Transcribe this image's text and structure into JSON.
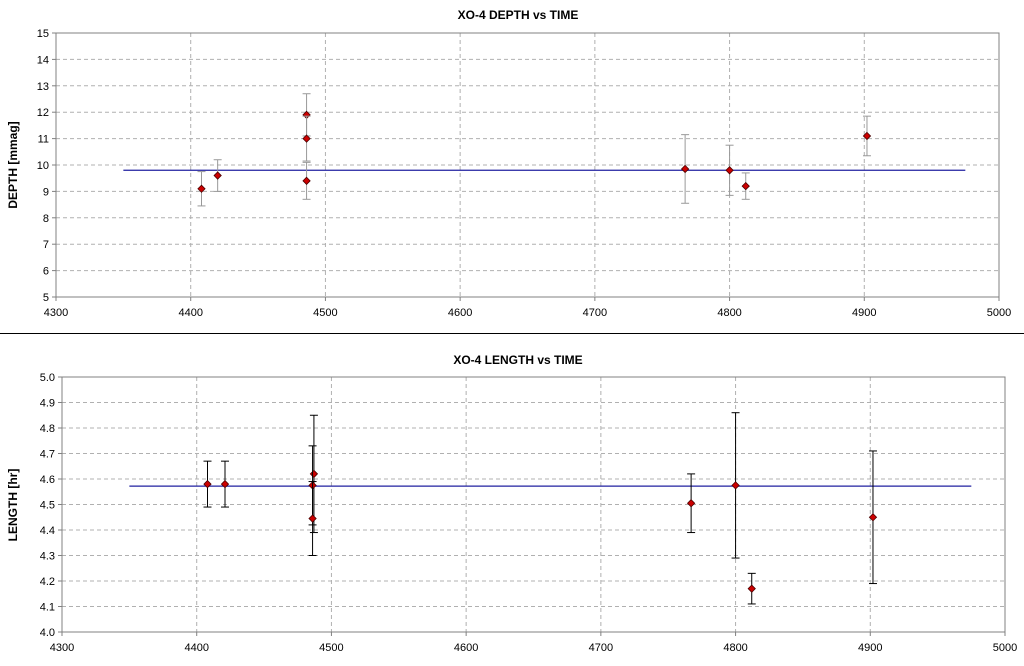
{
  "chart_data": [
    {
      "type": "scatter",
      "title": "XO-4 DEPTH vs TIME",
      "xlabel": "",
      "ylabel": "DEPTH [mmag]",
      "xlim": [
        4300,
        5000
      ],
      "ylim": [
        5,
        15
      ],
      "x_ticks": [
        "4300",
        "4400",
        "4500",
        "4600",
        "4700",
        "4800",
        "4900",
        "5000"
      ],
      "y_ticks": [
        "5",
        "6",
        "7",
        "8",
        "9",
        "10",
        "11",
        "12",
        "13",
        "14",
        "15"
      ],
      "grid": true,
      "points": [
        {
          "x": 4408,
          "y": 9.1,
          "err": 0.65
        },
        {
          "x": 4420,
          "y": 9.6,
          "err": 0.6
        },
        {
          "x": 4486,
          "y": 11.9,
          "err": 0.8
        },
        {
          "x": 4486,
          "y": 11.0,
          "err": 0.85
        },
        {
          "x": 4486,
          "y": 9.4,
          "err": 0.7
        },
        {
          "x": 4767,
          "y": 9.85,
          "err": 1.3
        },
        {
          "x": 4800,
          "y": 9.8,
          "err": 0.95
        },
        {
          "x": 4812,
          "y": 9.2,
          "err": 0.5
        },
        {
          "x": 4902,
          "y": 11.1,
          "err": 0.75
        }
      ],
      "fit_line": {
        "x": [
          4350,
          4975
        ],
        "y": 9.8
      },
      "colors": {
        "marker": "#cc0000",
        "marker_edge": "#4a0000",
        "errorbar": "#999999",
        "fit": "#2020a0",
        "grid": "#b0b0b0"
      }
    },
    {
      "type": "scatter",
      "title": "XO-4 LENGTH vs TIME",
      "xlabel": "",
      "ylabel": "LENGTH [hr]",
      "xlim": [
        4300,
        5000
      ],
      "ylim": [
        4.0,
        5.0
      ],
      "x_ticks": [
        "4300",
        "4400",
        "4500",
        "4600",
        "4700",
        "4800",
        "4900",
        "5000"
      ],
      "y_ticks": [
        "4.0",
        "4.1",
        "4.2",
        "4.3",
        "4.4",
        "4.5",
        "4.6",
        "4.7",
        "4.8",
        "4.9",
        "5.0"
      ],
      "grid": true,
      "points": [
        {
          "x": 4408,
          "y": 4.58,
          "err": 0.09
        },
        {
          "x": 4421,
          "y": 4.58,
          "err": 0.09
        },
        {
          "x": 4487,
          "y": 4.62,
          "err": 0.23
        },
        {
          "x": 4486,
          "y": 4.575,
          "err": 0.155
        },
        {
          "x": 4486,
          "y": 4.445,
          "err": 0.145
        },
        {
          "x": 4767,
          "y": 4.505,
          "err": 0.115
        },
        {
          "x": 4800,
          "y": 4.575,
          "err": 0.285
        },
        {
          "x": 4812,
          "y": 4.17,
          "err": 0.06
        },
        {
          "x": 4902,
          "y": 4.45,
          "err": 0.26
        }
      ],
      "fit_line": {
        "x": [
          4350,
          4975
        ],
        "y": 4.572
      },
      "colors": {
        "marker": "#cc0000",
        "marker_edge": "#4a0000",
        "errorbar": "#000000",
        "fit": "#2020a0",
        "grid": "#b0b0b0"
      }
    }
  ]
}
